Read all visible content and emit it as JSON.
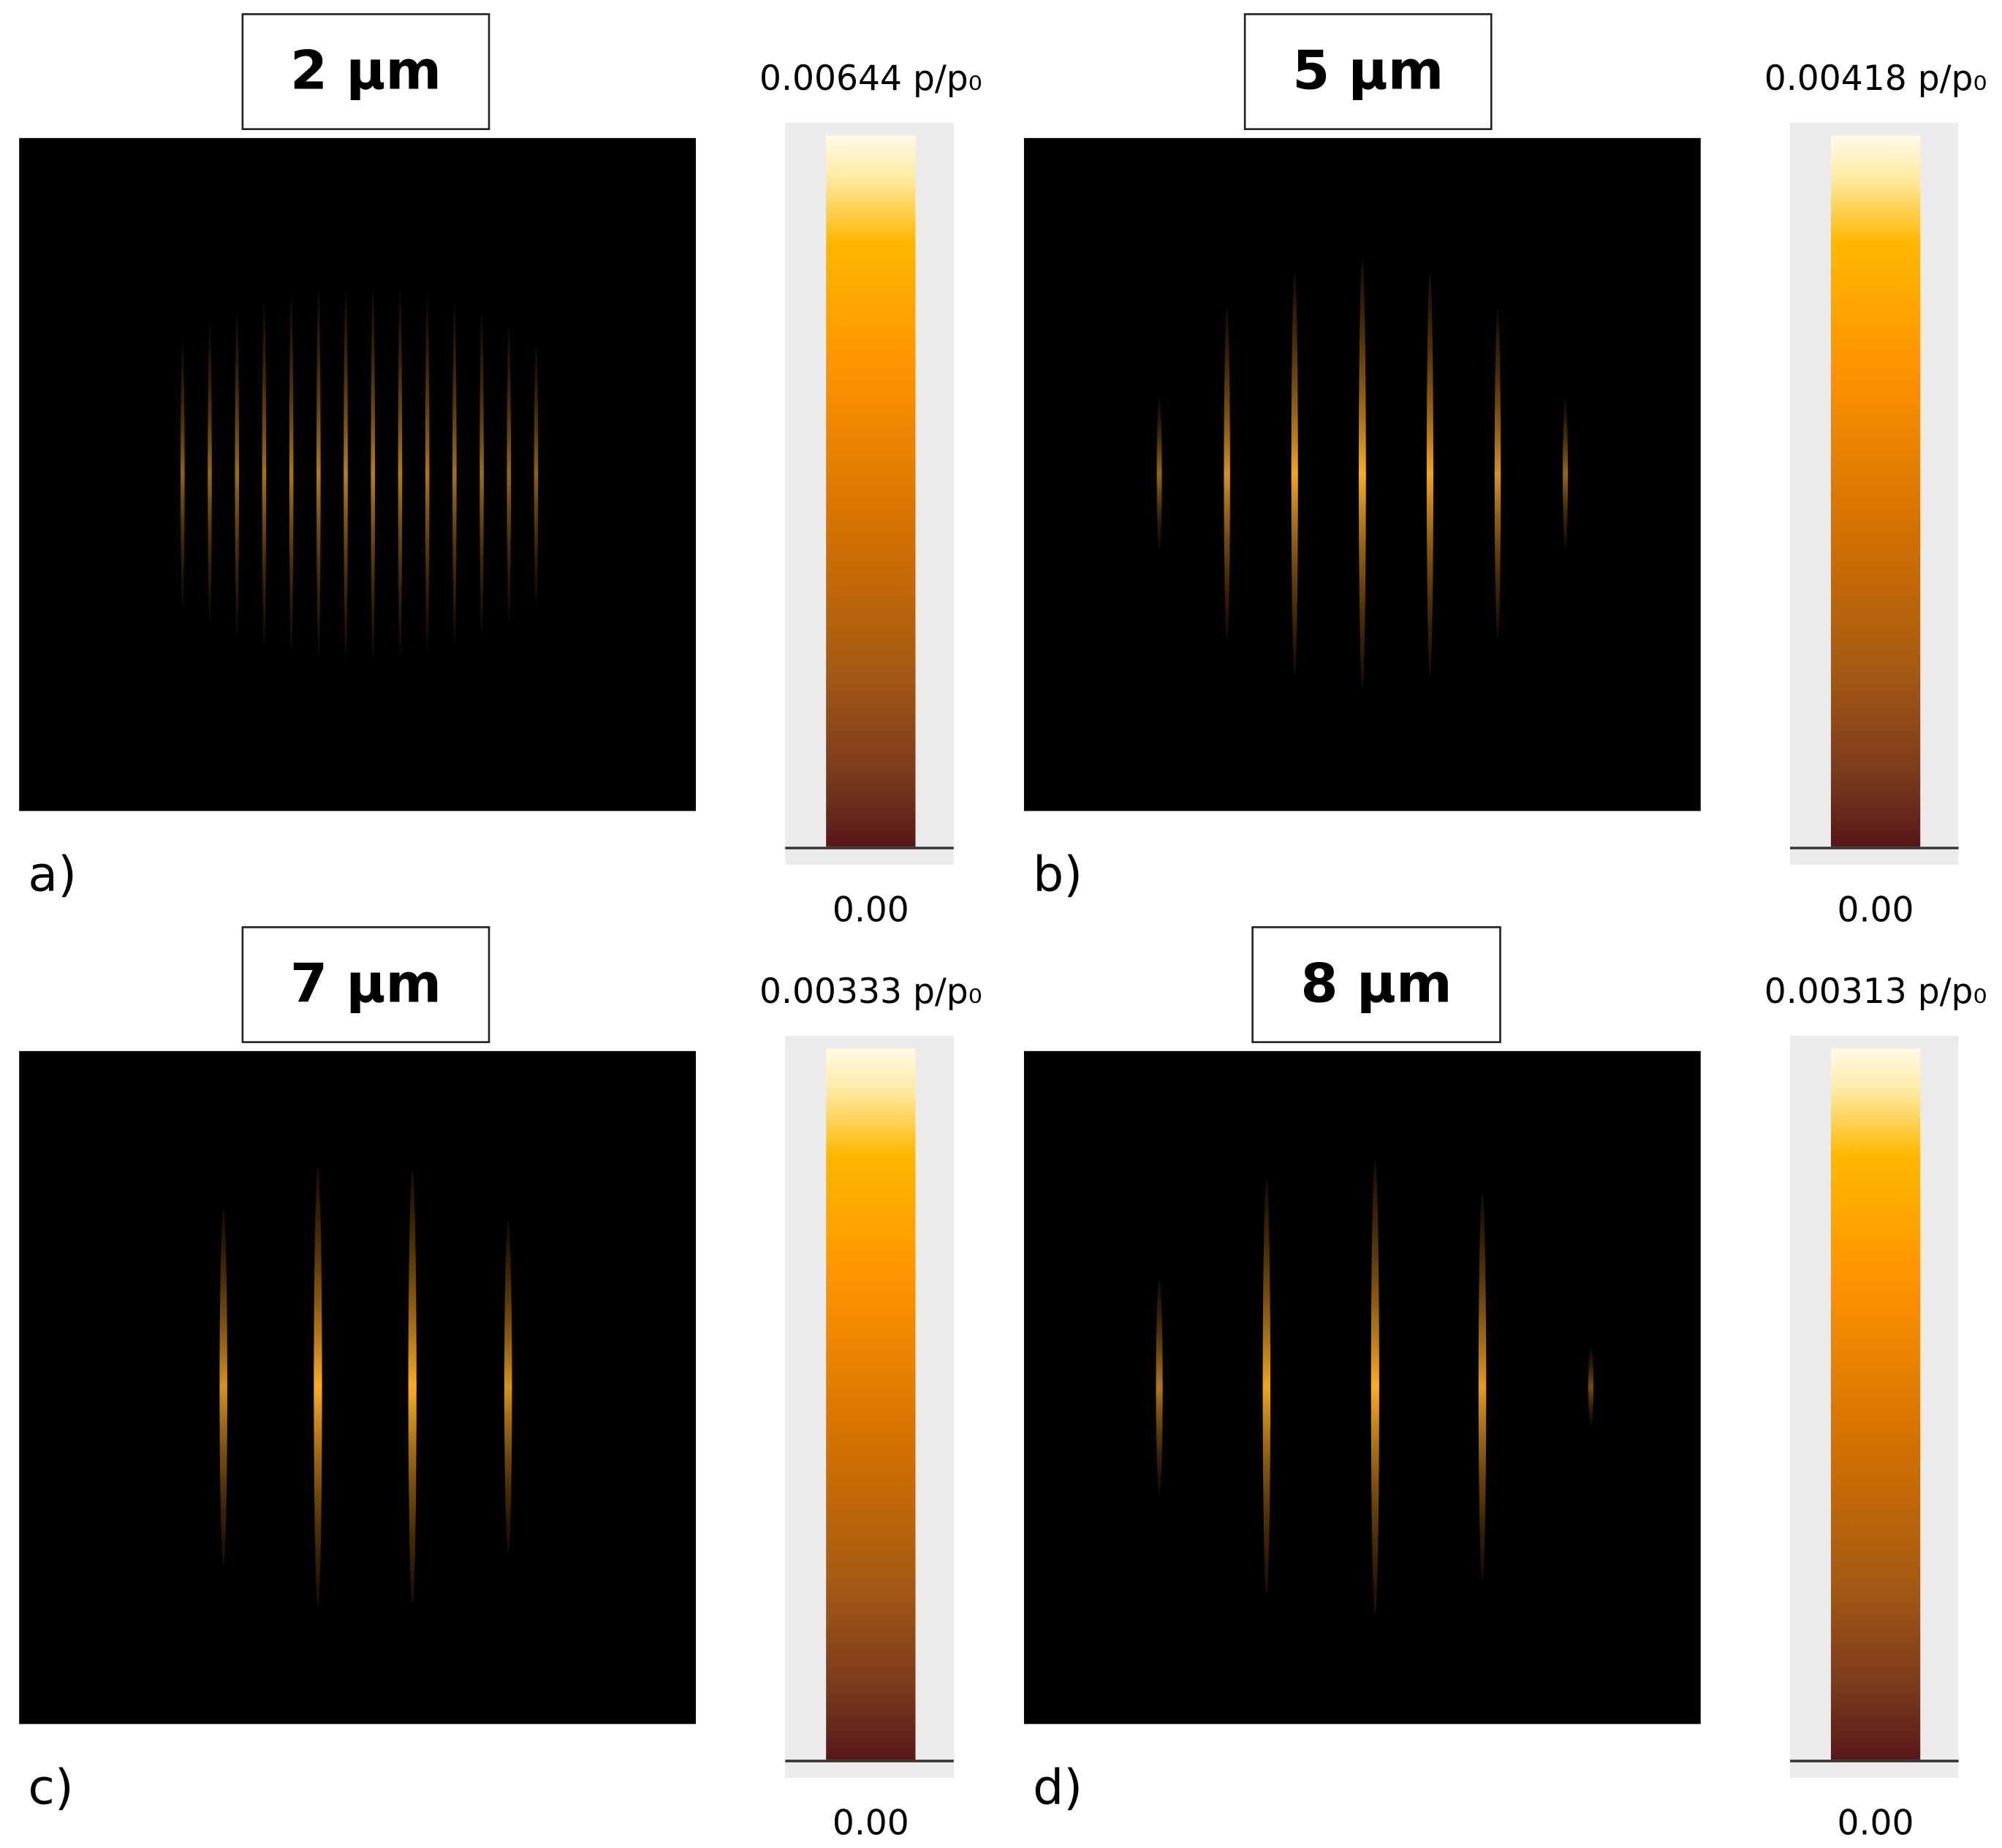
{
  "panels": [
    {
      "title": "2 µm",
      "label": "a)",
      "colorbar": {
        "max": "0.00644 p/p₀",
        "min": "0.00"
      }
    },
    {
      "title": "5 µm",
      "label": "b)",
      "colorbar": {
        "max": "0.00418 p/p₀",
        "min": "0.00"
      }
    },
    {
      "title": "7 µm",
      "label": "c)",
      "colorbar": {
        "max": "0.00333 p/p₀",
        "min": "0.00"
      }
    },
    {
      "title": "8 µm",
      "label": "d)",
      "colorbar": {
        "max": "0.00313 p/p₀",
        "min": "0.00"
      }
    }
  ]
}
